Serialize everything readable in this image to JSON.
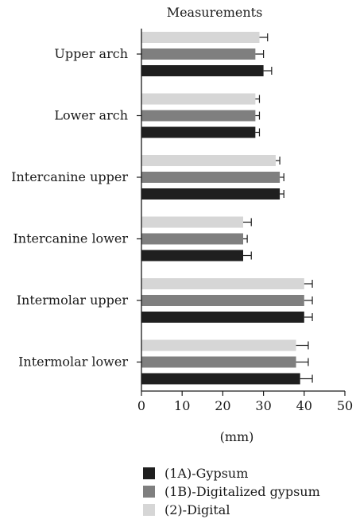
{
  "chart_data": {
    "type": "bar",
    "orientation": "horizontal",
    "title": "Measurements",
    "xlabel": "(mm)",
    "ylabel": "",
    "xlim": [
      0,
      50
    ],
    "xticks": [
      0,
      10,
      20,
      30,
      40,
      50
    ],
    "grid": false,
    "legend_position": "bottom",
    "categories": [
      "Upper arch",
      "Lower arch",
      "Intercanine upper",
      "Intercanine lower",
      "Intermolar upper",
      "Intermolar lower"
    ],
    "series": [
      {
        "name": "(1A)-Gypsum",
        "color": "#1f1f1f",
        "values": [
          30.0,
          28.0,
          34.0,
          25.0,
          40.0,
          39.0
        ],
        "errors": [
          2.0,
          1.0,
          1.0,
          2.0,
          2.0,
          3.0
        ]
      },
      {
        "name": "(1B)-Digitalized gypsum",
        "color": "#7f7f7f",
        "values": [
          28.0,
          28.0,
          34.0,
          25.0,
          40.0,
          38.0
        ],
        "errors": [
          2.0,
          1.0,
          1.0,
          1.0,
          2.0,
          3.0
        ]
      },
      {
        "name": "(2)-Digital",
        "color": "#d6d6d6",
        "values": [
          29.0,
          28.0,
          33.0,
          25.0,
          40.0,
          38.0
        ],
        "errors": [
          2.0,
          1.0,
          1.0,
          2.0,
          2.0,
          3.0
        ]
      }
    ]
  }
}
